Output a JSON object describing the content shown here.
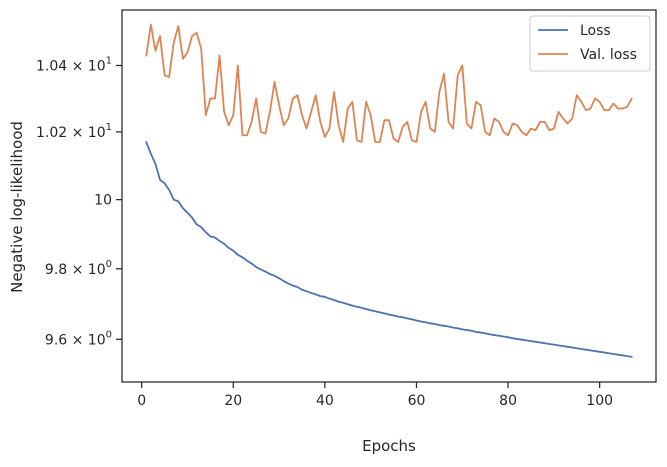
{
  "chart_data": {
    "type": "line",
    "title": "",
    "xlabel": "Epochs",
    "ylabel": "Negative log-likelihood",
    "yscale": "log",
    "xlim": [
      -4.3,
      112.3
    ],
    "ylim": [
      9.481,
      10.57
    ],
    "grid": false,
    "legend_position": "top-right",
    "x_ticks": [
      {
        "value": 0,
        "label": "0"
      },
      {
        "value": 20,
        "label": "20"
      },
      {
        "value": 40,
        "label": "40"
      },
      {
        "value": 60,
        "label": "60"
      },
      {
        "value": 80,
        "label": "80"
      },
      {
        "value": 100,
        "label": "100"
      }
    ],
    "y_ticks": [
      {
        "value": 9.6,
        "mant": "9.6",
        "exp": "0"
      },
      {
        "value": 9.8,
        "mant": "9.8",
        "exp": "0"
      },
      {
        "value": 10.0,
        "mant": "10",
        "exp": ""
      },
      {
        "value": 10.2,
        "mant": "1.02",
        "exp": "1"
      },
      {
        "value": 10.4,
        "mant": "1.04",
        "exp": "1"
      }
    ],
    "x": [
      1,
      2,
      3,
      4,
      5,
      6,
      7,
      8,
      9,
      10,
      11,
      12,
      13,
      14,
      15,
      16,
      17,
      18,
      19,
      20,
      21,
      22,
      23,
      24,
      25,
      26,
      27,
      28,
      29,
      30,
      31,
      32,
      33,
      34,
      35,
      36,
      37,
      38,
      39,
      40,
      41,
      42,
      43,
      44,
      45,
      46,
      47,
      48,
      49,
      50,
      51,
      52,
      53,
      54,
      55,
      56,
      57,
      58,
      59,
      60,
      61,
      62,
      63,
      64,
      65,
      66,
      67,
      68,
      69,
      70,
      71,
      72,
      73,
      74,
      75,
      76,
      77,
      78,
      79,
      80,
      81,
      82,
      83,
      84,
      85,
      86,
      87,
      88,
      89,
      90,
      91,
      92,
      93,
      94,
      95,
      96,
      97,
      98,
      99,
      100,
      101,
      102,
      103,
      104,
      105,
      106,
      107
    ],
    "series": [
      {
        "name": "Loss",
        "color": "#4c72b0",
        "values": [
          10.17,
          10.135,
          10.105,
          10.058,
          10.048,
          10.028,
          10.0,
          9.995,
          9.975,
          9.962,
          9.948,
          9.928,
          9.92,
          9.905,
          9.893,
          9.89,
          9.88,
          9.872,
          9.86,
          9.852,
          9.84,
          9.833,
          9.823,
          9.815,
          9.805,
          9.798,
          9.792,
          9.785,
          9.78,
          9.773,
          9.765,
          9.758,
          9.752,
          9.748,
          9.74,
          9.736,
          9.731,
          9.727,
          9.722,
          9.72,
          9.715,
          9.711,
          9.706,
          9.703,
          9.699,
          9.695,
          9.692,
          9.689,
          9.685,
          9.682,
          9.679,
          9.676,
          9.673,
          9.67,
          9.667,
          9.664,
          9.662,
          9.659,
          9.656,
          9.653,
          9.65,
          9.648,
          9.645,
          9.643,
          9.64,
          9.638,
          9.636,
          9.633,
          9.631,
          9.628,
          9.626,
          9.624,
          9.621,
          9.619,
          9.617,
          9.614,
          9.612,
          9.61,
          9.608,
          9.606,
          9.603,
          9.601,
          9.599,
          9.597,
          9.595,
          9.593,
          9.591,
          9.589,
          9.587,
          9.585,
          9.583,
          9.581,
          9.579,
          9.577,
          9.575,
          9.573,
          9.571,
          9.569,
          9.567,
          9.565,
          9.563,
          9.561,
          9.559,
          9.557,
          9.555,
          9.553,
          9.551
        ]
      },
      {
        "name": "Val. loss",
        "color": "#dd8452",
        "values": [
          10.43,
          10.525,
          10.445,
          10.49,
          10.37,
          10.365,
          10.47,
          10.52,
          10.42,
          10.44,
          10.49,
          10.5,
          10.45,
          10.25,
          10.3,
          10.3,
          10.43,
          10.26,
          10.22,
          10.25,
          10.4,
          10.19,
          10.19,
          10.23,
          10.3,
          10.2,
          10.195,
          10.26,
          10.35,
          10.28,
          10.22,
          10.24,
          10.3,
          10.31,
          10.25,
          10.21,
          10.26,
          10.31,
          10.23,
          10.185,
          10.21,
          10.32,
          10.22,
          10.17,
          10.27,
          10.29,
          10.175,
          10.17,
          10.29,
          10.25,
          10.17,
          10.17,
          10.235,
          10.235,
          10.18,
          10.17,
          10.215,
          10.23,
          10.175,
          10.17,
          10.26,
          10.29,
          10.21,
          10.2,
          10.32,
          10.375,
          10.23,
          10.21,
          10.37,
          10.4,
          10.225,
          10.21,
          10.29,
          10.28,
          10.2,
          10.19,
          10.24,
          10.23,
          10.2,
          10.19,
          10.225,
          10.22,
          10.2,
          10.19,
          10.21,
          10.205,
          10.23,
          10.23,
          10.205,
          10.21,
          10.26,
          10.24,
          10.225,
          10.24,
          10.31,
          10.29,
          10.265,
          10.27,
          10.3,
          10.29,
          10.265,
          10.265,
          10.285,
          10.27,
          10.27,
          10.275,
          10.3
        ]
      }
    ]
  }
}
